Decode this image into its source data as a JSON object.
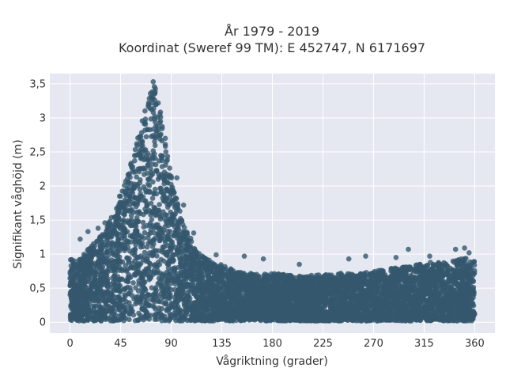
{
  "chart_data": {
    "type": "scatter",
    "title": "År 1979 - 2019",
    "subtitle": "Koordinat (Sweref 99 TM): E 452747, N 6171697",
    "xlabel": "Vågriktning (grader)",
    "ylabel": "Signifikant våghöjd (m)",
    "xlim": [
      -18,
      378
    ],
    "ylim": [
      -0.16,
      3.65
    ],
    "x_ticks": [
      0,
      45,
      90,
      135,
      180,
      225,
      270,
      315,
      360
    ],
    "x_tick_labels": [
      "0",
      "45",
      "90",
      "135",
      "180",
      "225",
      "270",
      "315",
      "360"
    ],
    "y_ticks": [
      0,
      0.5,
      1,
      1.5,
      2,
      2.5,
      3,
      3.5
    ],
    "y_tick_labels": [
      "0",
      "0,5",
      "1",
      "1,5",
      "2",
      "2,5",
      "3",
      "3,5"
    ],
    "grid": true,
    "legend": "none",
    "marker_color": "#34586e",
    "plot_bg": "#e5e8f0",
    "envelope": {
      "direction": [
        0,
        5,
        10,
        15,
        20,
        25,
        30,
        35,
        40,
        45,
        50,
        55,
        60,
        65,
        70,
        75,
        80,
        85,
        90,
        95,
        100,
        105,
        110,
        115,
        120,
        125,
        130,
        135,
        140,
        150,
        160,
        170,
        180,
        190,
        200,
        210,
        220,
        230,
        240,
        250,
        260,
        270,
        280,
        290,
        300,
        310,
        320,
        330,
        340,
        350,
        360
      ],
      "max_height": [
        0.95,
        0.9,
        0.95,
        1.05,
        1.15,
        1.25,
        1.35,
        1.5,
        1.7,
        1.9,
        2.1,
        2.45,
        2.7,
        3.0,
        3.35,
        3.5,
        3.15,
        2.7,
        2.15,
        1.8,
        1.5,
        1.3,
        1.15,
        1.05,
        0.95,
        0.9,
        0.85,
        0.85,
        0.8,
        0.75,
        0.72,
        0.7,
        0.72,
        0.7,
        0.68,
        0.68,
        0.7,
        0.7,
        0.72,
        0.72,
        0.72,
        0.75,
        0.78,
        0.8,
        0.82,
        0.85,
        0.88,
        0.88,
        0.9,
        0.95,
        0.9
      ]
    },
    "outliers": [
      {
        "x": 74,
        "y": 3.53
      },
      {
        "x": 75,
        "y": 3.46
      },
      {
        "x": 73,
        "y": 3.38
      },
      {
        "x": 70,
        "y": 3.22
      },
      {
        "x": 80,
        "y": 3.05
      },
      {
        "x": 62,
        "y": 2.52
      },
      {
        "x": 95,
        "y": 2.12
      },
      {
        "x": 101,
        "y": 1.72
      },
      {
        "x": 110,
        "y": 1.31
      },
      {
        "x": 31,
        "y": 1.46
      },
      {
        "x": 25,
        "y": 1.38
      },
      {
        "x": 16,
        "y": 1.33
      },
      {
        "x": 9,
        "y": 1.22
      },
      {
        "x": 130,
        "y": 0.99
      },
      {
        "x": 155,
        "y": 0.97
      },
      {
        "x": 172,
        "y": 0.93
      },
      {
        "x": 204,
        "y": 0.85
      },
      {
        "x": 248,
        "y": 0.93
      },
      {
        "x": 263,
        "y": 0.97
      },
      {
        "x": 290,
        "y": 0.95
      },
      {
        "x": 301,
        "y": 1.07
      },
      {
        "x": 320,
        "y": 0.97
      },
      {
        "x": 343,
        "y": 1.07
      },
      {
        "x": 351,
        "y": 1.09
      },
      {
        "x": 355,
        "y": 1.02
      }
    ]
  }
}
